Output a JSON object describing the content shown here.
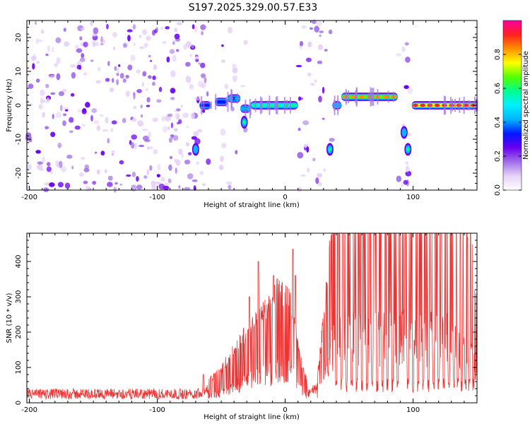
{
  "title": "S197.2025.329.00.57.E33",
  "chart_data": [
    {
      "type": "heatmap",
      "xlabel": "Height of straight line (km)",
      "ylabel": "Frequency (Hz)",
      "xlim": [
        -202,
        150
      ],
      "ylim": [
        -25,
        25
      ],
      "xticks": [
        -200,
        -100,
        0,
        100
      ],
      "yticks": [
        -20,
        -10,
        0,
        10,
        20
      ],
      "colorbar": {
        "label": "Normalized spectral amplitude",
        "range": [
          0,
          1
        ],
        "ticks": [
          0.0,
          0.2,
          0.4,
          0.6,
          0.8
        ],
        "colormap": [
          "#ffffff",
          "#e6d2f7",
          "#a070e8",
          "#6a00f0",
          "#0018ff",
          "#00b4ff",
          "#00f0ff",
          "#00ff90",
          "#55ff00",
          "#ffff00",
          "#ff9000",
          "#ff2020",
          "#ff00a0"
        ]
      },
      "noise_bands": [
        {
          "x": [
            -202,
            -60
          ],
          "density": 0.55
        },
        {
          "x": [
            -50,
            -38
          ],
          "density": 0.35
        },
        {
          "x": [
            -35,
            -30
          ],
          "density": 0.2
        },
        {
          "x": [
            10,
            33
          ],
          "density": 0.4
        },
        {
          "x": [
            35,
            37
          ],
          "density": 0.3
        },
        {
          "x": [
            88,
            98
          ],
          "density": 0.4
        }
      ],
      "signal_segments": [
        {
          "x": [
            -67,
            -58
          ],
          "freq": 0,
          "amp": 0.2
        },
        {
          "x": [
            -55,
            -45
          ],
          "freq": 1,
          "amp": 0.25
        },
        {
          "x": [
            -45,
            -35
          ],
          "freq": 2,
          "amp": 0.3
        },
        {
          "x": [
            -35,
            -27
          ],
          "freq": -1,
          "amp": 0.3
        },
        {
          "x": [
            -27,
            10
          ],
          "freq": 0,
          "amp": 0.45
        },
        {
          "x": [
            37,
            44
          ],
          "freq": 0,
          "amp": 0.35
        },
        {
          "x": [
            44,
            88
          ],
          "freq": 2.5,
          "amp": 0.75
        },
        {
          "x": [
            99,
            150
          ],
          "freq": 0,
          "amp": 0.8
        }
      ],
      "signal_spots": [
        {
          "x": -70,
          "freq": -13,
          "amp": 0.25
        },
        {
          "x": -32,
          "freq": -5,
          "amp": 0.4
        },
        {
          "x": 35,
          "freq": -13,
          "amp": 0.45
        },
        {
          "x": 96,
          "freq": -13,
          "amp": 0.45
        },
        {
          "x": 93,
          "freq": -8,
          "amp": 0.3
        }
      ]
    },
    {
      "type": "line",
      "xlabel": "Height of straight line (km)",
      "ylabel": "SNR (10 * v/v)",
      "xlim": [
        -202,
        150
      ],
      "ylim": [
        0,
        480
      ],
      "xticks": [
        -200,
        -100,
        0,
        100
      ],
      "yticks": [
        0,
        100,
        200,
        300,
        400
      ],
      "series": [
        {
          "name": "SNR",
          "color": "#ee3333",
          "envelope": [
            {
              "x": -202,
              "y": 25
            },
            {
              "x": -100,
              "y": 25
            },
            {
              "x": -70,
              "y": 25
            },
            {
              "x": -60,
              "y": 40
            },
            {
              "x": -50,
              "y": 60
            },
            {
              "x": -40,
              "y": 100
            },
            {
              "x": -30,
              "y": 130
            },
            {
              "x": -15,
              "y": 170
            },
            {
              "x": -5,
              "y": 210
            },
            {
              "x": 5,
              "y": 180
            },
            {
              "x": 12,
              "y": 80
            },
            {
              "x": 18,
              "y": 30
            },
            {
              "x": 25,
              "y": 40
            },
            {
              "x": 33,
              "y": 220
            },
            {
              "x": 38,
              "y": 370
            },
            {
              "x": 48,
              "y": 400
            },
            {
              "x": 70,
              "y": 400
            },
            {
              "x": 90,
              "y": 410
            },
            {
              "x": 110,
              "y": 400
            },
            {
              "x": 130,
              "y": 390
            },
            {
              "x": 140,
              "y": 350
            },
            {
              "x": 145,
              "y": 280
            },
            {
              "x": 150,
              "y": 200
            }
          ],
          "peaks": [
            {
              "x": -64,
              "y": 80
            },
            {
              "x": -47,
              "y": 100
            },
            {
              "x": -28,
              "y": 300
            },
            {
              "x": -21,
              "y": 400
            },
            {
              "x": -9,
              "y": 360
            },
            {
              "x": 6,
              "y": 435
            },
            {
              "x": 8,
              "y": 360
            },
            {
              "x": 94,
              "y": 480
            }
          ],
          "dropouts": [
            40,
            44,
            48,
            52,
            56,
            60,
            64,
            68,
            72,
            76,
            80,
            84,
            88,
            96,
            100,
            104,
            108,
            112,
            116,
            120,
            124,
            128,
            132,
            135,
            138,
            141,
            144,
            147
          ],
          "dropout_level": 50
        }
      ]
    }
  ]
}
